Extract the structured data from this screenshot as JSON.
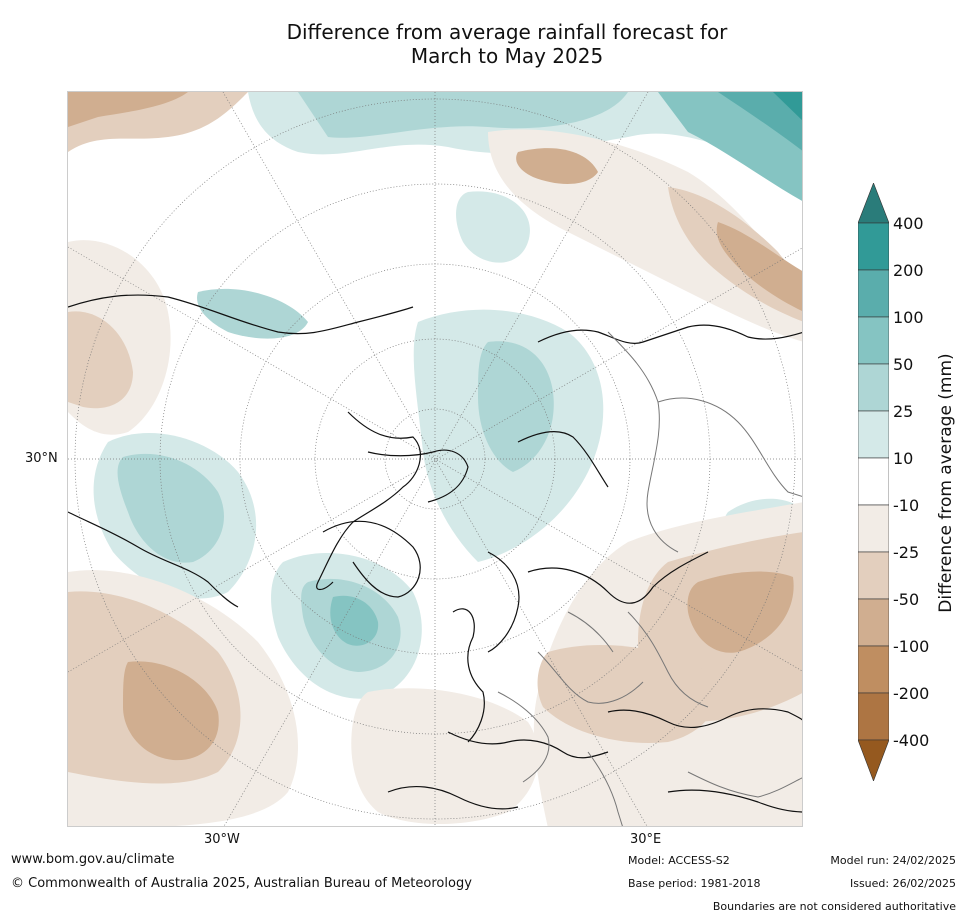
{
  "title_line1": "Difference from average rainfall forecast for",
  "title_line2": "March to May 2025",
  "map": {
    "lat_labels": [
      "30°N"
    ],
    "lon_labels": [
      "30°W",
      "30°E"
    ]
  },
  "legend": {
    "label": "Difference from average (mm)",
    "ticks": [
      "400",
      "200",
      "100",
      "50",
      "25",
      "10",
      "-10",
      "-25",
      "-50",
      "-100",
      "-200",
      "-400"
    ],
    "colors": {
      "gt400": "#2a7c7a",
      "c200_400": "#319a97",
      "c100_200": "#5aadac",
      "c50_100": "#85c4c2",
      "c25_50": "#aed6d5",
      "c10_25": "#d4e9e8",
      "c_neutral": "#ffffff",
      "cm10_m25": "#f2ece6",
      "cm25_m50": "#e3cfbe",
      "cm50_m100": "#d0ae90",
      "cm100_m200": "#bf8e61",
      "cm200_m400": "#ad7543",
      "lt_m400": "#95591f"
    }
  },
  "footer": {
    "website": "www.bom.gov.au/climate",
    "copyright": "© Commonwealth of Australia 2025, Australian Bureau of Meteorology",
    "model": "Model: ACCESS-S2",
    "base_period": "Base period: 1981-2018",
    "model_run": "Model run: 24/02/2025",
    "issued": "Issued: 26/02/2025",
    "disclaimer": "Boundaries are not considered authoritative"
  }
}
